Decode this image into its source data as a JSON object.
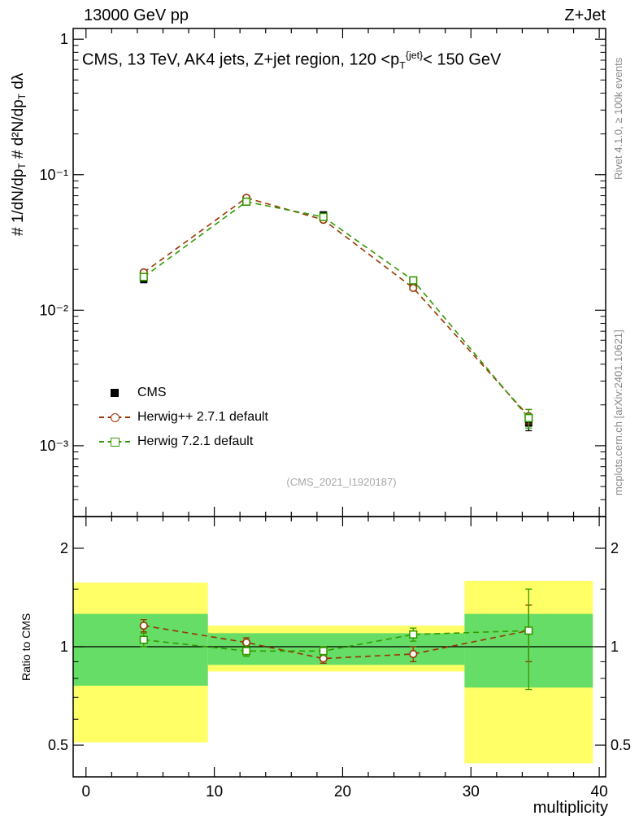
{
  "header": {
    "left": "13000 GeV pp",
    "right": "Z+Jet"
  },
  "texts": {
    "watermark": "(CMS_2021_I1920187)",
    "rivet_note": "Rivet 4.1.0, ≥ 100k events",
    "mcplots_note": "mcplots.cern.ch [arXiv:2401.10621]"
  },
  "chart_data": {
    "type": "line",
    "title": "CMS, 13 TeV, AK4 jets, Z+jet region, 120 <p~T~^{jet}^< 150 GeV",
    "xlabel": "multiplicity",
    "ylabel_main": "# 1/dN/dp~T~ # d²N/dp~T~ dλ",
    "ylabel_ratio": "Ratio to CMS",
    "x": [
      4.5,
      12.5,
      18.5,
      25.5,
      34.5
    ],
    "xlim": [
      -1,
      40.5
    ],
    "x_major_ticks": [
      0,
      10,
      20,
      30,
      40
    ],
    "x_minor_step": 2,
    "main": {
      "ylog": true,
      "ylim": [
        0.0003,
        1.2
      ],
      "y_major_ticks": [
        1,
        0.1,
        0.01,
        0.001
      ],
      "series": [
        {
          "name": "CMS",
          "marker": "square-filled",
          "color": "#000000",
          "line": "none",
          "y": [
            0.0168,
            0.065,
            0.0505,
            0.0155,
            0.00147
          ],
          "yerr": [
            0.0007,
            0.0018,
            0.0015,
            0.0007,
            0.00018
          ]
        },
        {
          "name": "Herwig++ 2.7.1 default",
          "marker": "circle-open",
          "color": "#993300",
          "line": "dashed",
          "y": [
            0.019,
            0.0675,
            0.0465,
            0.0146,
            0.00165
          ],
          "yerr": [
            0.0004,
            0.0012,
            0.001,
            0.0004,
            0.0002
          ]
        },
        {
          "name": "Herwig 7.2.1 default",
          "marker": "square-open",
          "color": "#339900",
          "line": "dashed",
          "y": [
            0.0176,
            0.0632,
            0.0488,
            0.0166,
            0.0016
          ],
          "yerr": [
            0.0004,
            0.0012,
            0.001,
            0.0004,
            0.00025
          ]
        }
      ]
    },
    "ratio": {
      "ylog": true,
      "ylim": [
        0.4,
        2.5
      ],
      "y_major_ticks": [
        0.5,
        1,
        2
      ],
      "y_minor_ticks": [
        0.6,
        0.7,
        0.8,
        0.9,
        1.5
      ],
      "bands": [
        {
          "x0": -1,
          "x1": 9.5,
          "yellow": [
            0.51,
            1.57
          ],
          "green": [
            0.76,
            1.26
          ]
        },
        {
          "x0": 9.5,
          "x1": 29.5,
          "yellow": [
            0.84,
            1.16
          ],
          "green": [
            0.88,
            1.1
          ]
        },
        {
          "x0": 29.5,
          "x1": 39.5,
          "yellow": [
            0.44,
            1.59
          ],
          "green": [
            0.75,
            1.26
          ]
        }
      ],
      "series": [
        {
          "name": "Herwig++ 2.7.1 default",
          "marker": "circle-open",
          "color": "#993300",
          "ratio": [
            1.16,
            1.03,
            0.92,
            0.95,
            1.12
          ],
          "yerr": [
            0.05,
            0.035,
            0.03,
            0.05,
            0.22
          ]
        },
        {
          "name": "Herwig 7.2.1 default",
          "marker": "square-open",
          "color": "#339900",
          "ratio": [
            1.05,
            0.97,
            0.97,
            1.09,
            1.12
          ],
          "yerr": [
            0.05,
            0.035,
            0.03,
            0.05,
            0.38
          ]
        }
      ]
    },
    "colors": {
      "yellow_band": "#ffff66",
      "green_band": "#66dd66",
      "reference_line": "#000000"
    }
  }
}
